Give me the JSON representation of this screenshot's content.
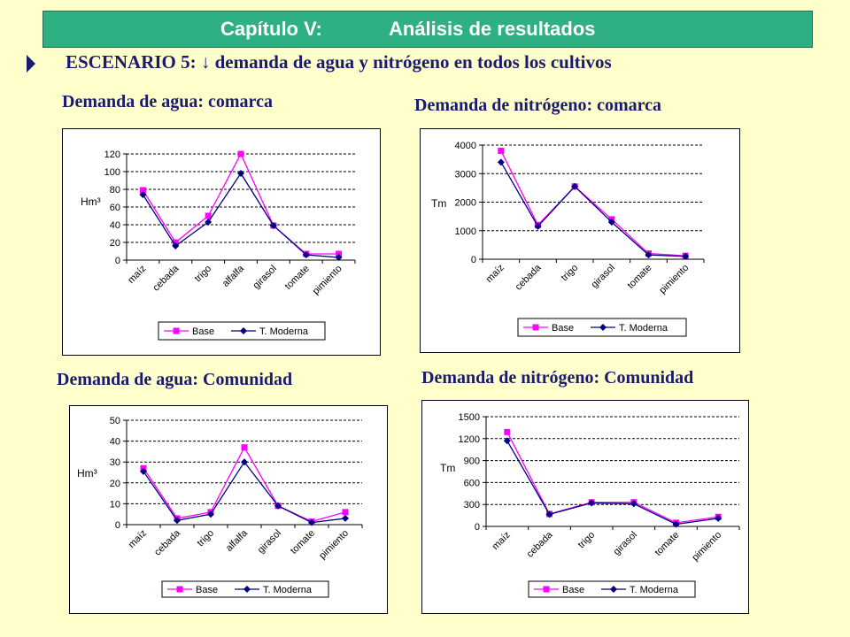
{
  "header": {
    "chapter": "Capítulo V:",
    "title": "Análisis de resultados"
  },
  "scenario": "ESCENARIO 5: ↓ demanda de agua y nitrógeno en todos los cultivos",
  "colors": {
    "base": "#FF00FF",
    "moderna": "#000080",
    "header_bg": "#2EB082",
    "title_text": "#1a1a6e"
  },
  "chart_data": [
    {
      "type": "line",
      "title": "Demanda de agua: comarca",
      "ylabel": "Hm³",
      "categories": [
        "maíz",
        "cebada",
        "trigo",
        "alfalfa",
        "girasol",
        "tomate",
        "pimiento"
      ],
      "yticks": [
        "0",
        "20",
        "40",
        "60",
        "80",
        "100",
        "120"
      ],
      "ylim": [
        0,
        120
      ],
      "series": [
        {
          "name": "Base",
          "values": [
            79,
            20,
            50,
            120,
            39,
            7,
            7
          ]
        },
        {
          "name": "T. Moderna",
          "values": [
            74,
            16,
            43,
            98,
            39,
            6,
            3
          ]
        }
      ]
    },
    {
      "type": "line",
      "title": "Demanda de nitrógeno: comarca",
      "ylabel": "Tm",
      "categories": [
        "maíz",
        "cebada",
        "trigo",
        "girasol",
        "tomate",
        "pimiento"
      ],
      "yticks": [
        "0",
        "1000",
        "2000",
        "3000",
        "4000"
      ],
      "ylim": [
        0,
        4000
      ],
      "series": [
        {
          "name": "Base",
          "values": [
            3800,
            1200,
            2550,
            1400,
            200,
            120
          ]
        },
        {
          "name": "T. Moderna",
          "values": [
            3400,
            1150,
            2550,
            1300,
            150,
            100
          ]
        }
      ]
    },
    {
      "type": "line",
      "title": "Demanda de agua: Comunidad",
      "ylabel": "Hm³",
      "categories": [
        "maíz",
        "cebada",
        "trigo",
        "alfalfa",
        "girasol",
        "tomate",
        "pimiento"
      ],
      "yticks": [
        "0",
        "10",
        "20",
        "30",
        "40",
        "50"
      ],
      "ylim": [
        0,
        50
      ],
      "series": [
        {
          "name": "Base",
          "values": [
            27,
            3,
            6,
            37,
            9,
            1.5,
            6
          ]
        },
        {
          "name": "T. Moderna",
          "values": [
            25.5,
            2,
            5,
            30,
            9,
            1,
            3
          ]
        }
      ]
    },
    {
      "type": "line",
      "title": "Demanda de nitrógeno: Comunidad",
      "ylabel": "Tm",
      "categories": [
        "maíz",
        "cebada",
        "trigo",
        "girasol",
        "tomate",
        "pimiento"
      ],
      "yticks": [
        "0",
        "300",
        "600",
        "900",
        "1200",
        "1500"
      ],
      "ylim": [
        0,
        1500
      ],
      "series": [
        {
          "name": "Base",
          "values": [
            1290,
            170,
            330,
            330,
            50,
            130
          ]
        },
        {
          "name": "T. Moderna",
          "values": [
            1170,
            165,
            320,
            310,
            30,
            110
          ]
        }
      ]
    }
  ]
}
